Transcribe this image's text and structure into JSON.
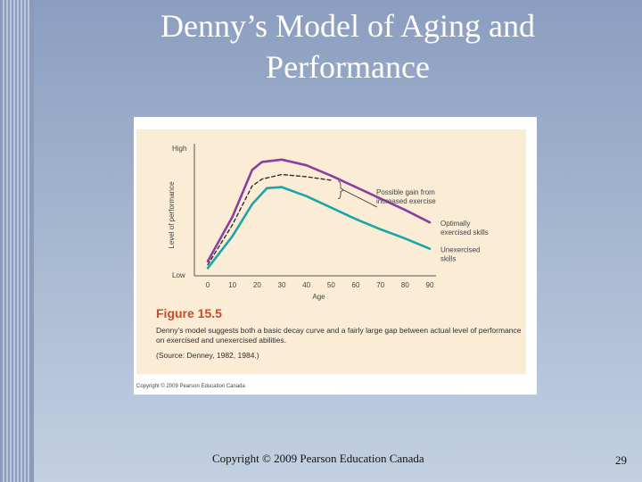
{
  "slide": {
    "title_line1": "Denny’s Model of Aging and",
    "title_line2": "Performance",
    "footer": "Copyright © 2009 Pearson Education Canada",
    "page_number": "29",
    "background_color": "#a3b4cf"
  },
  "figure": {
    "number": "Figure 15.5",
    "caption": "Denny’s model suggests both a basic decay curve and a fairly large gap between actual level of performance on exercised and unexercised abilities.",
    "source": "(Source: Denney, 1982, 1984.)",
    "copyright": "Copyright © 2009 Pearson Education Canada",
    "panel_color": "#fbecd6",
    "number_color": "#cc4a2a"
  },
  "chart_data": {
    "type": "line",
    "title": "",
    "xlabel": "Age",
    "ylabel": "Level of performance",
    "x": [
      0,
      10,
      20,
      30,
      40,
      50,
      60,
      70,
      80,
      90
    ],
    "xlim": [
      0,
      90
    ],
    "y_tick_labels": [
      "Low",
      "High"
    ],
    "grid": false,
    "series": [
      {
        "name": "Optimally exercised skills",
        "color": "#8a3fa0",
        "style": "solid",
        "points": [
          [
            0,
            0.08
          ],
          [
            10,
            0.47
          ],
          [
            18,
            0.88
          ],
          [
            22,
            0.95
          ],
          [
            30,
            0.97
          ],
          [
            40,
            0.92
          ],
          [
            50,
            0.83
          ],
          [
            60,
            0.73
          ],
          [
            70,
            0.63
          ],
          [
            80,
            0.53
          ],
          [
            90,
            0.42
          ]
        ]
      },
      {
        "name": "",
        "color": "#222222",
        "style": "dashed",
        "points": [
          [
            0,
            0.05
          ],
          [
            10,
            0.4
          ],
          [
            18,
            0.74
          ],
          [
            22,
            0.8
          ],
          [
            30,
            0.84
          ],
          [
            40,
            0.82
          ],
          [
            50,
            0.79
          ]
        ]
      },
      {
        "name": "Unexercised skills",
        "color": "#1aa6a8",
        "style": "solid",
        "points": [
          [
            0,
            0.02
          ],
          [
            10,
            0.3
          ],
          [
            18,
            0.58
          ],
          [
            24,
            0.72
          ],
          [
            30,
            0.73
          ],
          [
            40,
            0.65
          ],
          [
            50,
            0.55
          ],
          [
            60,
            0.45
          ],
          [
            70,
            0.36
          ],
          [
            80,
            0.28
          ],
          [
            90,
            0.19
          ]
        ]
      }
    ],
    "annotations": [
      {
        "text_line1": "Possible gain from",
        "text_line2": "increased exercise"
      }
    ]
  }
}
